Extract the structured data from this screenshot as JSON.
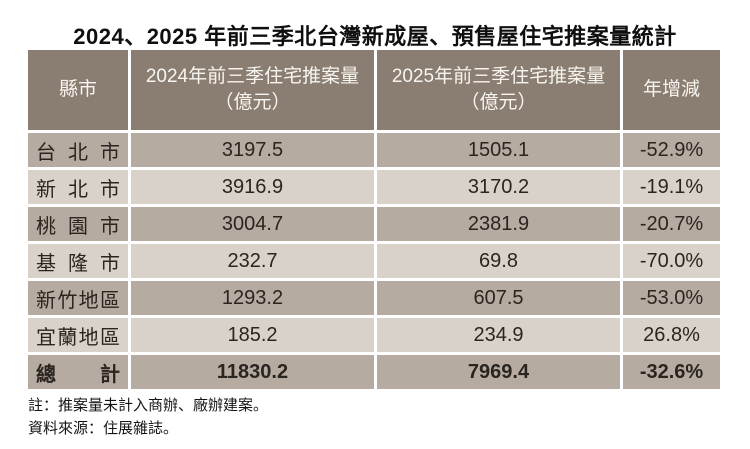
{
  "title": "2024、2025 年前三季北台灣新成屋、預售屋住宅推案量統計",
  "colors": {
    "header_bg": "#8a7d71",
    "row_dark_bg": "#b5aba0",
    "row_light_bg": "#d9d2c9",
    "header_text": "#f8f5f0",
    "cell_text": "#2b2520",
    "page_bg": "#ffffff"
  },
  "table": {
    "header": [
      {
        "label": "縣市",
        "sublabel": ""
      },
      {
        "label": "2024年前三季住宅推案量",
        "sublabel": "（億元）"
      },
      {
        "label": "2025年前三季住宅推案量",
        "sublabel": "（億元）"
      },
      {
        "label": "年增減",
        "sublabel": ""
      }
    ],
    "rows": [
      {
        "city": "台北市",
        "v2024": "3197.5",
        "v2025": "1505.1",
        "yoy": "-52.9%"
      },
      {
        "city": "新北市",
        "v2024": "3916.9",
        "v2025": "3170.2",
        "yoy": "-19.1%"
      },
      {
        "city": "桃園市",
        "v2024": "3004.7",
        "v2025": "2381.9",
        "yoy": "-20.7%"
      },
      {
        "city": "基隆市",
        "v2024": "232.7",
        "v2025": "69.8",
        "yoy": "-70.0%"
      },
      {
        "city": "新竹地區",
        "v2024": "1293.2",
        "v2025": "607.5",
        "yoy": "-53.0%"
      },
      {
        "city": "宜蘭地區",
        "v2024": "185.2",
        "v2025": "234.9",
        "yoy": "26.8%"
      }
    ],
    "total": {
      "city": "總計",
      "v2024": "11830.2",
      "v2025": "7969.4",
      "yoy": "-32.6%"
    }
  },
  "notes": [
    "註：推案量未計入商辦、廠辦建案。",
    "資料來源：住展雜誌。"
  ],
  "chart_data": {
    "type": "table",
    "title": "2024、2025 年前三季北台灣新成屋、預售屋住宅推案量統計",
    "columns": [
      "縣市",
      "2024年前三季住宅推案量（億元）",
      "2025年前三季住宅推案量（億元）",
      "年增減"
    ],
    "rows": [
      [
        "台北市",
        3197.5,
        1505.1,
        "-52.9%"
      ],
      [
        "新北市",
        3916.9,
        3170.2,
        "-19.1%"
      ],
      [
        "桃園市",
        3004.7,
        2381.9,
        "-20.7%"
      ],
      [
        "基隆市",
        232.7,
        69.8,
        "-70.0%"
      ],
      [
        "新竹地區",
        1293.2,
        607.5,
        "-53.0%"
      ],
      [
        "宜蘭地區",
        185.2,
        234.9,
        "26.8%"
      ],
      [
        "總計",
        11830.2,
        7969.4,
        "-32.6%"
      ]
    ],
    "notes": [
      "推案量未計入商辦、廠辦建案。"
    ],
    "source": "住展雜誌"
  }
}
